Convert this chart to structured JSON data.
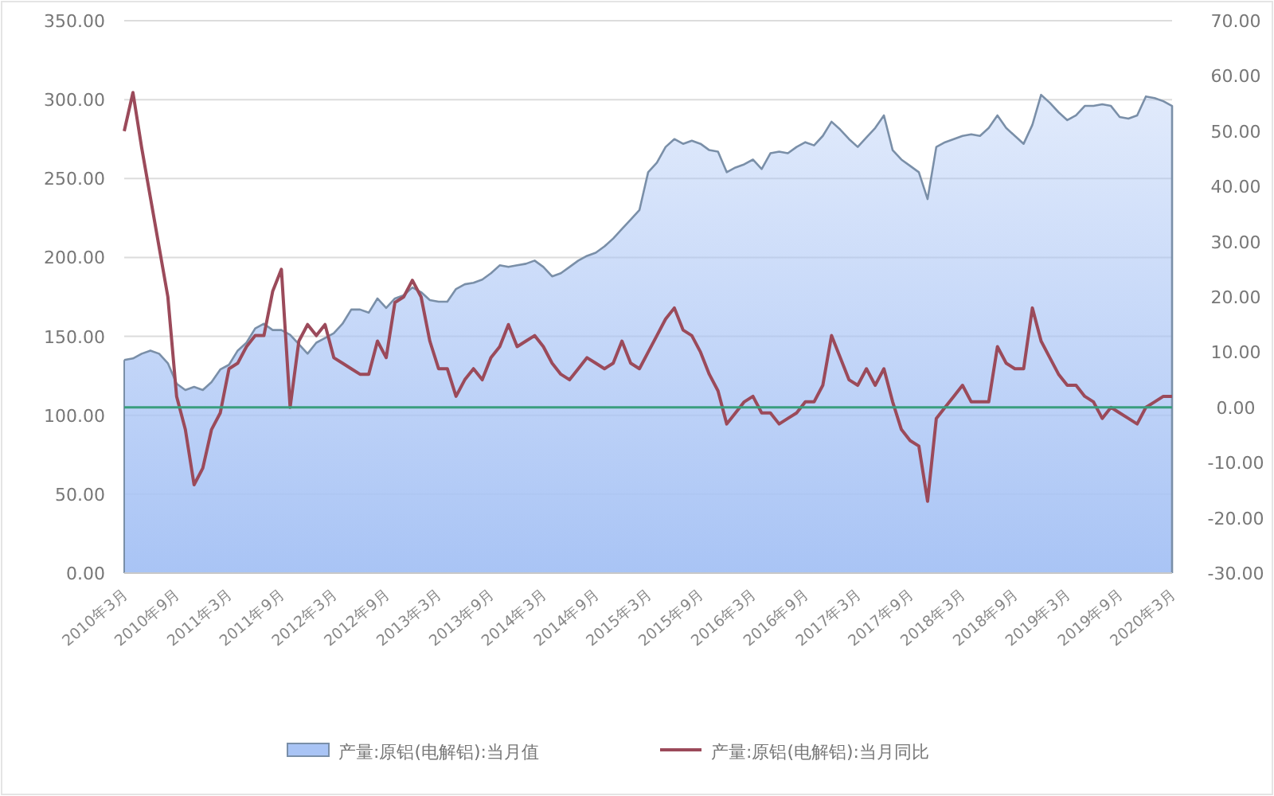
{
  "chart_data": {
    "type": "area",
    "categories": [
      "2010年3月",
      null,
      null,
      null,
      null,
      null,
      "2010年9月",
      null,
      null,
      null,
      null,
      null,
      "2011年3月",
      null,
      null,
      null,
      null,
      null,
      "2011年9月",
      null,
      null,
      null,
      null,
      null,
      "2012年3月",
      null,
      null,
      null,
      null,
      null,
      "2012年9月",
      null,
      null,
      null,
      null,
      null,
      "2013年3月",
      null,
      null,
      null,
      null,
      null,
      "2013年9月",
      null,
      null,
      null,
      null,
      null,
      "2014年3月",
      null,
      null,
      null,
      null,
      null,
      "2014年9月",
      null,
      null,
      null,
      null,
      null,
      "2015年3月",
      null,
      null,
      null,
      null,
      null,
      "2015年9月",
      null,
      null,
      null,
      null,
      null,
      "2016年3月",
      null,
      null,
      null,
      null,
      null,
      "2016年9月",
      null,
      null,
      null,
      null,
      null,
      "2017年3月",
      null,
      null,
      null,
      null,
      null,
      "2017年9月",
      null,
      null,
      null,
      null,
      null,
      "2018年3月",
      null,
      null,
      null,
      null,
      null,
      "2018年9月",
      null,
      null,
      null,
      null,
      null,
      "2019年3月",
      null,
      null,
      null,
      null,
      null,
      "2019年9月",
      null,
      null,
      null,
      null,
      null,
      "2020年3月"
    ],
    "series": [
      {
        "name": "产量:原铝(电解铝):当月值",
        "axis": "y",
        "color": "#a9c4f5",
        "values": [
          135,
          136,
          139,
          141,
          139,
          133,
          120,
          116,
          118,
          116,
          121,
          129,
          132,
          141,
          146,
          155,
          158,
          154,
          154,
          151,
          145,
          139,
          146,
          149,
          152,
          158,
          167,
          167,
          165,
          174,
          168,
          174,
          176,
          181,
          178,
          173,
          172,
          172,
          180,
          183,
          184,
          186,
          190,
          195,
          194,
          195,
          196,
          198,
          194,
          188,
          190,
          194,
          198,
          201,
          203,
          207,
          212,
          218,
          224,
          230,
          254,
          260,
          270,
          275,
          272,
          274,
          272,
          268,
          267,
          254,
          257,
          259,
          262,
          256,
          266,
          267,
          266,
          270,
          273,
          271,
          277,
          286,
          281,
          275,
          270,
          276,
          282,
          290,
          268,
          262,
          258,
          254,
          237,
          270,
          273,
          275,
          277,
          278,
          277,
          282,
          290,
          282,
          277,
          272,
          284,
          303,
          298,
          292,
          287,
          290,
          296,
          296,
          297,
          296,
          289,
          288,
          290,
          302,
          301,
          299,
          296
        ]
      },
      {
        "name": "产量:原铝(电解铝):当月同比",
        "type": "line",
        "axis": "y2",
        "color": "#9b4a5a",
        "values": [
          50,
          57,
          47,
          38,
          29,
          20,
          2,
          -4,
          -14,
          -11,
          -4,
          -1,
          7,
          8,
          11,
          13,
          13,
          21,
          25,
          0,
          12,
          15,
          13,
          15,
          9,
          8,
          7,
          6,
          6,
          12,
          9,
          19,
          20,
          23,
          20,
          12,
          7,
          7,
          2,
          5,
          7,
          5,
          9,
          11,
          15,
          11,
          12,
          13,
          11,
          8,
          6,
          5,
          7,
          9,
          8,
          7,
          8,
          12,
          8,
          7,
          10,
          13,
          16,
          18,
          14,
          13,
          10,
          6,
          3,
          -3,
          -1,
          1,
          2,
          -1,
          -1,
          -3,
          -2,
          -1,
          1,
          1,
          4,
          13,
          9,
          5,
          4,
          7,
          4,
          7,
          1,
          -4,
          -6,
          -7,
          -17,
          -2,
          0,
          2,
          4,
          1,
          1,
          1,
          11,
          8,
          7,
          7,
          18,
          12,
          9,
          6,
          4,
          4,
          2,
          1,
          -2,
          0,
          -1,
          -2,
          -3,
          0,
          1,
          2,
          2
        ]
      }
    ],
    "ylim": [
      0,
      350
    ],
    "yticks": [
      {
        "value": 0,
        "label": "0.00"
      },
      {
        "value": 50,
        "label": "50.00"
      },
      {
        "value": 100,
        "label": "100.00"
      },
      {
        "value": 150,
        "label": "150.00"
      },
      {
        "value": 200,
        "label": "200.00"
      },
      {
        "value": 250,
        "label": "250.00"
      },
      {
        "value": 300,
        "label": "300.00"
      },
      {
        "value": 350,
        "label": "350.00"
      }
    ],
    "y2lim": [
      -30,
      70
    ],
    "y2ticks": [
      {
        "value": -30,
        "label": "-30.00"
      },
      {
        "value": -20,
        "label": "-20.00"
      },
      {
        "value": -10,
        "label": "-10.00"
      },
      {
        "value": 0,
        "label": "0.00"
      },
      {
        "value": 10,
        "label": "10.00"
      },
      {
        "value": 20,
        "label": "20.00"
      },
      {
        "value": 30,
        "label": "30.00"
      },
      {
        "value": 40,
        "label": "40.00"
      },
      {
        "value": 50,
        "label": "50.00"
      },
      {
        "value": 60,
        "label": "60.00"
      },
      {
        "value": 70,
        "label": "70.00"
      }
    ],
    "ref_lines": [
      {
        "axis": "y2",
        "value": 0,
        "color": "#3a9e7e"
      }
    ],
    "grid": "y",
    "legend": "bottom"
  }
}
